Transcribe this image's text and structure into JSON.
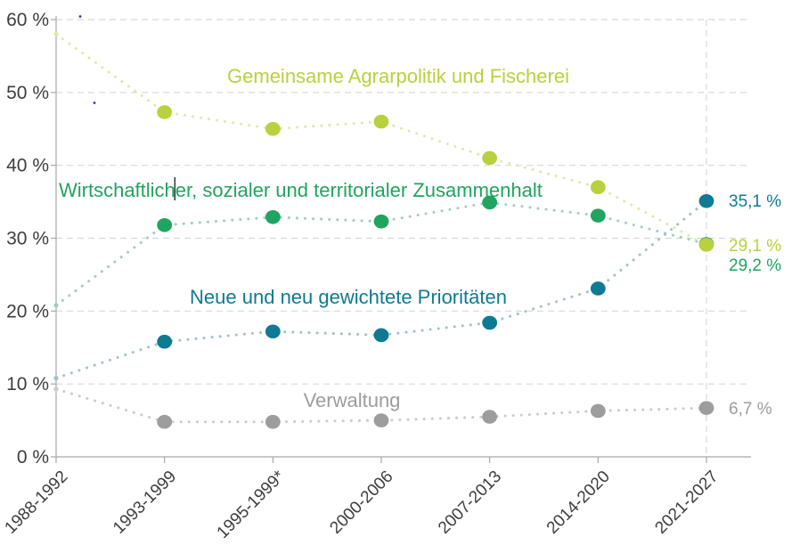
{
  "chart_data": {
    "type": "line",
    "title": "",
    "style": "dotted-line-with-markers",
    "categories": [
      "1988-1992",
      "1993-1999",
      "1995-1999*",
      "2000-2006",
      "2007-2013",
      "2014-2020",
      "2021-2027"
    ],
    "x_highlight_category": "2021-2027",
    "y_ticks": [
      {
        "value": 0,
        "label": "0 %"
      },
      {
        "value": 10,
        "label": "10 %"
      },
      {
        "value": 20,
        "label": "20 %"
      },
      {
        "value": 30,
        "label": "30 %"
      },
      {
        "value": 40,
        "label": "40 %"
      },
      {
        "value": 50,
        "label": "50 %"
      },
      {
        "value": 60,
        "label": "60 %"
      }
    ],
    "ylim": [
      0,
      60
    ],
    "grid": true,
    "legend_position": "inline-labels",
    "series": [
      {
        "id": "cap",
        "name": "Gemeinsame Agrarpolitik und Fischerei",
        "color": "#b9d13e",
        "dot_color": "#dde9ab",
        "values": [
          58,
          47.3,
          45,
          46,
          41,
          37,
          29.1
        ],
        "end_label": "29,1 %"
      },
      {
        "id": "cohesion",
        "name": "Wirtschaftlicher, sozialer und territorialer Zusammenhalt",
        "color": "#21a45f",
        "dot_color": "#a5cdb9",
        "values": [
          20.8,
          31.8,
          32.9,
          32.3,
          34.9,
          33.1,
          29.2
        ],
        "end_label": "29,2 %"
      },
      {
        "id": "new-priorities",
        "name": "Neue und neu gewichtete Prioritäten",
        "color": "#0e7a94",
        "dot_color": "#a4c1c9",
        "values": [
          10.8,
          15.8,
          17.2,
          16.7,
          18.4,
          23.1,
          35.1
        ],
        "end_label": "35,1 %"
      },
      {
        "id": "administration",
        "name": "Verwaltung",
        "color": "#9d9d9d",
        "dot_color": "#cbcbcb",
        "values": [
          9.3,
          4.8,
          4.8,
          5,
          5.5,
          6.3,
          6.7
        ],
        "end_label": "6,7 %"
      }
    ]
  },
  "colors": {
    "axis": "#a8a8a8",
    "grid": "#d8d8d8",
    "tick_label": "#3e3e3e"
  }
}
